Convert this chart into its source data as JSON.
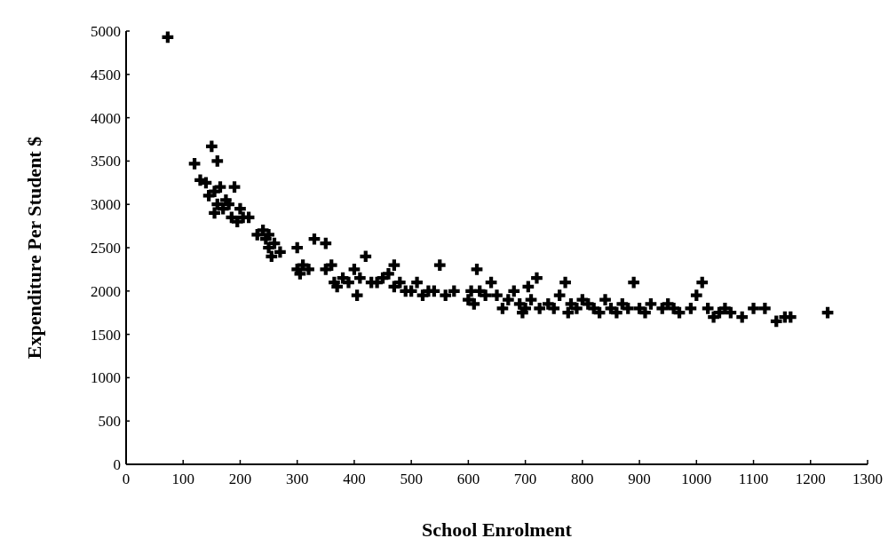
{
  "chart_data": {
    "type": "scatter",
    "xlabel": "School Enrolment",
    "ylabel": "Expenditure Per Student $",
    "xlim": [
      0,
      1300
    ],
    "ylim": [
      0,
      5000
    ],
    "xticks": [
      0,
      100,
      200,
      300,
      400,
      500,
      600,
      700,
      800,
      900,
      1000,
      1100,
      1200,
      1300
    ],
    "yticks": [
      0,
      500,
      1000,
      1500,
      2000,
      2500,
      3000,
      3500,
      4000,
      4500,
      5000
    ],
    "marker": "cross",
    "grid": false,
    "series": [
      {
        "color": "#000000",
        "x": [
          73,
          120,
          130,
          140,
          145,
          150,
          155,
          155,
          160,
          160,
          165,
          170,
          175,
          180,
          185,
          190,
          195,
          200,
          205,
          215,
          230,
          240,
          245,
          250,
          250,
          255,
          260,
          270,
          300,
          300,
          305,
          310,
          320,
          330,
          350,
          350,
          360,
          365,
          370,
          380,
          390,
          400,
          405,
          410,
          420,
          430,
          440,
          450,
          460,
          470,
          470,
          480,
          490,
          500,
          510,
          520,
          530,
          540,
          550,
          560,
          575,
          600,
          605,
          610,
          615,
          620,
          630,
          640,
          650,
          660,
          670,
          680,
          690,
          695,
          700,
          705,
          710,
          720,
          725,
          740,
          750,
          760,
          770,
          775,
          780,
          790,
          800,
          810,
          820,
          830,
          840,
          850,
          860,
          870,
          880,
          890,
          900,
          910,
          920,
          940,
          950,
          960,
          970,
          990,
          1000,
          1010,
          1020,
          1030,
          1040,
          1050,
          1060,
          1080,
          1100,
          1120,
          1140,
          1155,
          1165,
          1230
        ],
        "values": [
          4930,
          3470,
          3280,
          3250,
          3100,
          3670,
          3150,
          2900,
          3500,
          3000,
          3200,
          2950,
          3050,
          3000,
          2850,
          3200,
          2800,
          2950,
          2850,
          2850,
          2650,
          2700,
          2600,
          2650,
          2500,
          2400,
          2550,
          2450,
          2500,
          2250,
          2200,
          2300,
          2250,
          2600,
          2550,
          2250,
          2300,
          2100,
          2050,
          2150,
          2100,
          2250,
          1950,
          2150,
          2400,
          2100,
          2100,
          2150,
          2200,
          2050,
          2300,
          2100,
          2000,
          2000,
          2100,
          1950,
          2000,
          2000,
          2300,
          1950,
          2000,
          1900,
          2000,
          1850,
          2250,
          2000,
          1950,
          2100,
          1950,
          1800,
          1900,
          2000,
          1850,
          1750,
          1800,
          2050,
          1900,
          2150,
          1800,
          1850,
          1800,
          1950,
          2100,
          1750,
          1850,
          1800,
          1900,
          1850,
          1800,
          1750,
          1900,
          1800,
          1750,
          1850,
          1800,
          2100,
          1800,
          1750,
          1850,
          1800,
          1850,
          1800,
          1750,
          1800,
          1950,
          2100,
          1800,
          1700,
          1750,
          1800,
          1750,
          1700,
          1800,
          1800,
          1650,
          1700,
          1700,
          1750
        ]
      }
    ]
  }
}
